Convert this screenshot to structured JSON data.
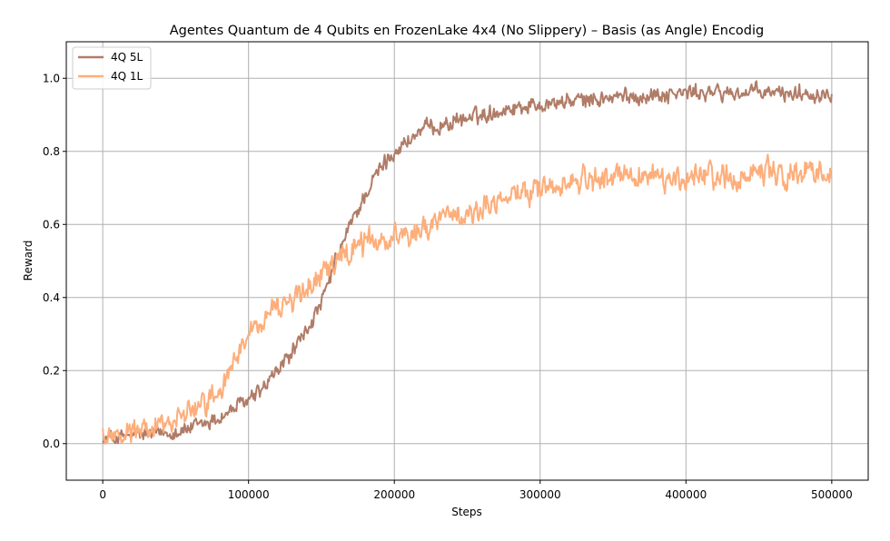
{
  "chart_data": {
    "type": "line",
    "title": "Agentes Quantum de 4 Qubits en FrozenLake 4x4 (No Slippery) – Basis (as Angle) Encodig",
    "xlabel": "Steps",
    "ylabel": "Reward",
    "xlim": [
      -25000,
      525000
    ],
    "ylim": [
      -0.1,
      1.1
    ],
    "x_ticks": [
      0,
      100000,
      200000,
      300000,
      400000,
      500000
    ],
    "y_ticks": [
      0.0,
      0.2,
      0.4,
      0.6,
      0.8,
      1.0
    ],
    "grid": true,
    "legend_position": "top-left",
    "series": [
      {
        "name": "4Q 5L",
        "color": "#b07c68",
        "noise": 0.03,
        "x": [
          0,
          20000,
          40000,
          60000,
          80000,
          100000,
          110000,
          120000,
          130000,
          140000,
          150000,
          160000,
          170000,
          180000,
          190000,
          200000,
          210000,
          220000,
          240000,
          260000,
          280000,
          300000,
          330000,
          360000,
          400000,
          450000,
          500000
        ],
        "y": [
          0.01,
          0.02,
          0.03,
          0.04,
          0.07,
          0.12,
          0.15,
          0.2,
          0.25,
          0.31,
          0.38,
          0.5,
          0.6,
          0.68,
          0.75,
          0.8,
          0.83,
          0.86,
          0.88,
          0.9,
          0.92,
          0.93,
          0.94,
          0.95,
          0.96,
          0.96,
          0.96
        ]
      },
      {
        "name": "4Q 1L",
        "color": "#fdae7b",
        "noise": 0.045,
        "x": [
          0,
          20000,
          40000,
          60000,
          80000,
          90000,
          100000,
          110000,
          120000,
          140000,
          160000,
          170000,
          180000,
          190000,
          200000,
          210000,
          220000,
          240000,
          260000,
          280000,
          300000,
          320000,
          350000,
          400000,
          450000,
          500000
        ],
        "y": [
          0.02,
          0.03,
          0.05,
          0.08,
          0.15,
          0.23,
          0.3,
          0.33,
          0.37,
          0.42,
          0.5,
          0.53,
          0.55,
          0.55,
          0.57,
          0.58,
          0.6,
          0.62,
          0.65,
          0.68,
          0.7,
          0.72,
          0.73,
          0.73,
          0.74,
          0.75
        ]
      }
    ]
  }
}
